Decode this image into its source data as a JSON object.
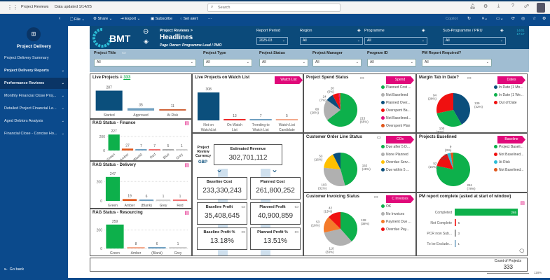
{
  "topbar": {
    "app": "Project Reviews",
    "updated": "Data updated 1/14/25",
    "search_placeholder": "Search"
  },
  "toolbar": {
    "file": "File",
    "share": "Share",
    "export": "Export",
    "subscribe": "Subscribe",
    "alert": "Set alert",
    "more": "···",
    "copilot": "Copilot"
  },
  "sidebar": {
    "title": "Project Delivery",
    "items": [
      {
        "label": "Project Delivery Summary",
        "chev": ""
      },
      {
        "label": "Project Delivery Reports",
        "chev": "⌄",
        "bold": true
      },
      {
        "label": "Performance Reviews",
        "chev": "⌄",
        "active": true
      },
      {
        "label": "Monthly Financial Close Proj...",
        "chev": "⌄"
      },
      {
        "label": "Detailed Project Financial Le...",
        "chev": "⌄"
      },
      {
        "label": "Aged Debtors Analysis",
        "chev": "⌄"
      },
      {
        "label": "Financial Close - Concise Ho...",
        "chev": "⌄"
      }
    ],
    "back": "Go back"
  },
  "header": {
    "logo": "BMT",
    "breadcrumb": "Project Reviews >",
    "title": "Headlines",
    "owner": "Page Owner: Programme Lead / PMO",
    "timestamp": "14/01 17:17",
    "slicers": [
      {
        "label": "Report Period",
        "value": "2025-03"
      },
      {
        "label": "Region",
        "value": "All"
      },
      {
        "label": "Programme",
        "value": "All"
      },
      {
        "label": "Sub-Programme / PRU",
        "value": "All"
      }
    ]
  },
  "filters": [
    {
      "label": "Project Title",
      "value": "All"
    },
    {
      "label": "Project Type",
      "value": "All"
    },
    {
      "label": "Project Status",
      "value": "All"
    },
    {
      "label": "Project Manager",
      "value": "All"
    },
    {
      "label": "Program ID",
      "value": "All"
    },
    {
      "label": "PM Report Required?",
      "value": "All"
    }
  ],
  "live": {
    "title": "Live Projects =",
    "count": "333",
    "bars": [
      {
        "label": "Started",
        "value": 287,
        "color": "#0b4f7c"
      },
      {
        "label": "Approved",
        "value": 35,
        "color": "#6f9fc0"
      },
      {
        "label": "At Risk",
        "value": 11,
        "color": "#d0643a"
      }
    ]
  },
  "watch": {
    "title": "Live Projects on Watch List",
    "tag": "Watch List",
    "bars": [
      {
        "label": "Not on WatchList",
        "value": 308,
        "color": "#0b4f7c"
      },
      {
        "label": "On Watch List",
        "value": 13,
        "color": "#ee2a2a"
      },
      {
        "label": "Trending to Watch List",
        "value": 7,
        "color": "#6f9fc0"
      },
      {
        "label": "Watch List Candidate",
        "value": 5,
        "color": "#f3a98c"
      }
    ]
  },
  "rag_finance": {
    "title": "RAG Status - Finance",
    "ticks": [
      "200",
      "0"
    ],
    "bars": [
      {
        "label": "Green",
        "value": 227,
        "color": "#0db04b"
      },
      {
        "label": "Amber",
        "value": 27,
        "color": "#e0561a"
      },
      {
        "label": "(Blank)",
        "value": 7,
        "color": "#6f9fc0"
      },
      {
        "label": "Red",
        "value": 7,
        "color": "#f07070"
      },
      {
        "label": "Blue",
        "value": 5,
        "color": "#aaa"
      },
      {
        "label": "Grey",
        "value": 1,
        "color": "#ccc"
      }
    ]
  },
  "rag_delivery": {
    "title": "RAG Status - Delivery",
    "ticks": [
      "200",
      "0"
    ],
    "bars": [
      {
        "label": "Green",
        "value": 247,
        "color": "#0db04b"
      },
      {
        "label": "Amber",
        "value": 19,
        "color": "#e0561a"
      },
      {
        "label": "(Blank)",
        "value": 6,
        "color": "#6f9fc0"
      },
      {
        "label": "Grey",
        "value": 1,
        "color": "#ccc"
      },
      {
        "label": "Red",
        "value": 1,
        "color": "#f07070"
      }
    ]
  },
  "rag_resourcing": {
    "title": "RAG Status - Resourcing",
    "ticks": [
      "200",
      "0"
    ],
    "bars": [
      {
        "label": "Green",
        "value": 259,
        "color": "#0db04b"
      },
      {
        "label": "Amber",
        "value": 8,
        "color": "#f3a98c"
      },
      {
        "label": "(Blank)",
        "value": 6,
        "color": "#6f9fc0"
      },
      {
        "label": "Grey",
        "value": 1,
        "color": "#ccc"
      }
    ]
  },
  "finance": {
    "currency_label": "Project Review Currency",
    "currency": "GBP",
    "est_rev_label": "Estimated Revenue",
    "est_rev": "302,701,112",
    "kpis": [
      {
        "label": "Baseline Cost",
        "value": "233,330,243"
      },
      {
        "label": "Planned Cost",
        "value": "261,800,252"
      },
      {
        "label": "Baseline Profit",
        "value": "35,408,645"
      },
      {
        "label": "Planned Profit",
        "value": "40,900,859"
      },
      {
        "label": "Baseline Profit %",
        "value": "13.18%"
      },
      {
        "label": "Planned Profit %",
        "value": "13.51%"
      }
    ]
  },
  "chart_data": [
    {
      "type": "pie",
      "title": "Project Spend Status",
      "tag": "Spend",
      "slices": [
        {
          "label": "Planned Cost ...",
          "value": 215,
          "pct": "65%",
          "color": "#0db04b"
        },
        {
          "label": "Not Baselined",
          "value": 68,
          "pct": "20%",
          "color": "#b0b0b0"
        },
        {
          "label": "Planned Over...",
          "value": 24,
          "pct": "7%",
          "color": "#0b4f7c"
        },
        {
          "label": "Overspent Ba...",
          "value": 20,
          "pct": "6%",
          "color": "#f01010"
        },
        {
          "label": "Not Baselined...",
          "value": 3,
          "pct": "",
          "color": "#e0097a"
        },
        {
          "label": "Overspent Plan",
          "value": 3,
          "pct": "",
          "color": "#e0561a"
        }
      ]
    },
    {
      "type": "pie",
      "title": "Margin Tab in Date?",
      "tag": "Dates",
      "slices": [
        {
          "label": "In Date (1 Mo...",
          "value": 139,
          "pct": "42%",
          "color": "#0b4f7c"
        },
        {
          "label": "In Date (1 We...",
          "value": 100,
          "pct": "30%",
          "color": "#0db04b"
        },
        {
          "label": "Out of Date",
          "value": 94,
          "pct": "28%",
          "color": "#f01010"
        }
      ]
    },
    {
      "type": "pie",
      "title": "Customer Order Line Status",
      "tag": "COs",
      "slices": [
        {
          "label": "Due after 5 D...",
          "value": 152,
          "pct": "46%",
          "color": "#0db04b"
        },
        {
          "label": "None Planned",
          "value": 103,
          "pct": "31%",
          "color": "#b0b0b0"
        },
        {
          "label": "Overdue Serv...",
          "value": 53,
          "pct": "16%",
          "color": "#ffc000"
        },
        {
          "label": "Due within 5 ...",
          "value": 25,
          "pct": "",
          "color": "#0b4f7c"
        }
      ]
    },
    {
      "type": "pie",
      "title": "Projects Baselined",
      "tag": "Baseline",
      "slices": [
        {
          "label": "Project Baseli...",
          "value": 261,
          "pct": "78%",
          "color": "#0db04b"
        },
        {
          "label": "Not Baselined...",
          "value": 52,
          "pct": "16%",
          "color": "#f01010"
        },
        {
          "label": "At Risk",
          "value": 11,
          "pct": "3%",
          "color": "#2bbcd6"
        },
        {
          "label": "Not Baselined...",
          "value": 9,
          "pct": "3%",
          "color": "#e0561a"
        }
      ]
    },
    {
      "type": "pie",
      "title": "Customer Invoicing Status",
      "tag": "C Invoices",
      "slices": [
        {
          "label": "OK",
          "value": 128,
          "pct": "38%",
          "color": "#0db04b"
        },
        {
          "label": "No Invoices",
          "value": 110,
          "pct": "33%",
          "color": "#b0b0b0"
        },
        {
          "label": "Payment Due ...",
          "value": 53,
          "pct": "16%",
          "color": "#f47a2a"
        },
        {
          "label": "Overdue Pay...",
          "value": 42,
          "pct": "13%",
          "color": "#f01010"
        }
      ]
    },
    {
      "type": "bar",
      "orientation": "horizontal",
      "title": "PM report complete (asked at start of window)",
      "categories": [
        "Completed",
        "Not Complete",
        "PCR now Sub...",
        "To be Exclude..."
      ],
      "values": [
        265,
        5,
        3,
        1
      ],
      "colors": [
        "#0db04b",
        "#f01010",
        "#777",
        "#6f9fc0"
      ]
    }
  ],
  "count": {
    "label": "Count of Projects",
    "value": "333"
  },
  "zoom": {
    "value": "118%"
  }
}
